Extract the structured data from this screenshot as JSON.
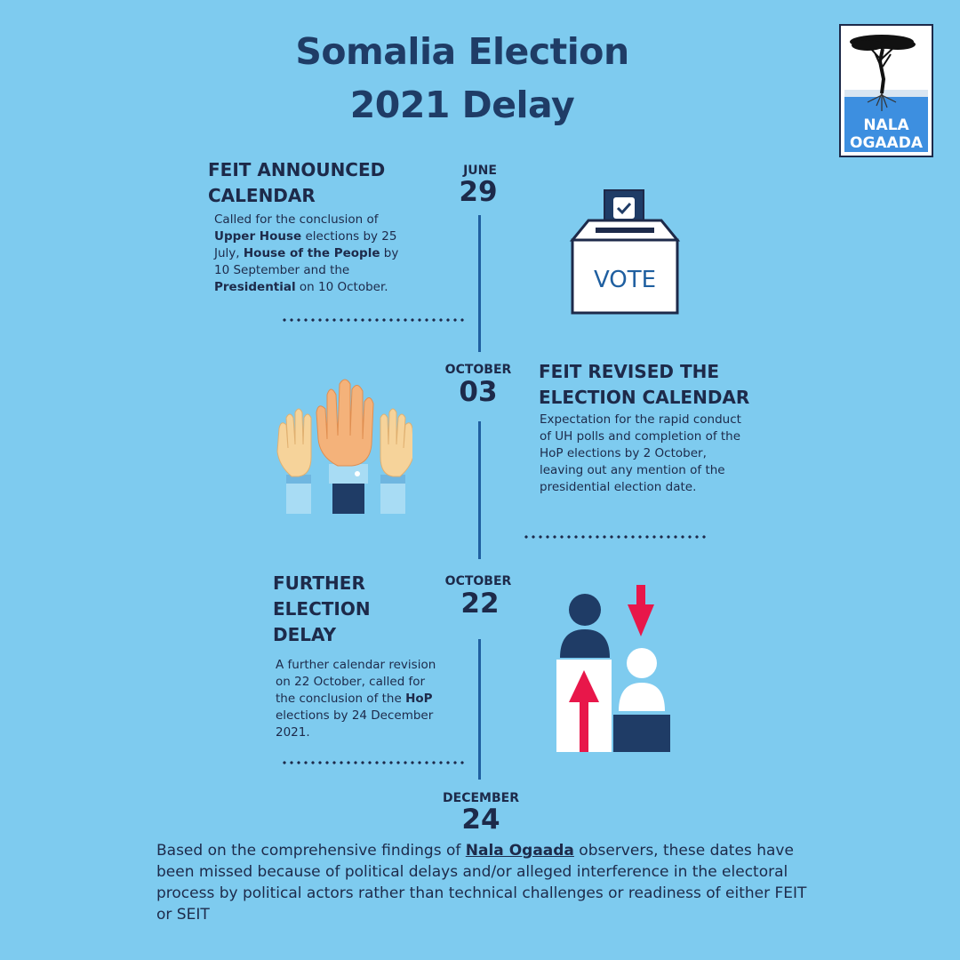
{
  "title": {
    "line1": "Somalia Election",
    "line2": "2021 Delay"
  },
  "logo": {
    "line1": "NALA",
    "line2": "OGAADA"
  },
  "events": [
    {
      "month": "JUNE",
      "day": "29",
      "heading1": "FEIT ANNOUNCED",
      "heading2": "CALENDAR",
      "body": [
        {
          "t": "Called for the conclusion of "
        },
        {
          "t": "Upper House",
          "b": true
        },
        {
          "t": " elections by 25 July, "
        },
        {
          "t": "House of the People",
          "b": true
        },
        {
          "t": " by 10 September and the "
        },
        {
          "t": "Presidential",
          "b": true
        },
        {
          "t": " on 10 October."
        }
      ]
    },
    {
      "month": "OCTOBER",
      "day": "03",
      "heading1": "FEIT REVISED THE",
      "heading2": "ELECTION CALENDAR",
      "body": [
        {
          "t": "Expectation for the rapid conduct of UH polls and completion of the HoP elections by 2 October, leaving out any mention of the presidential election date."
        }
      ]
    },
    {
      "month": "OCTOBER",
      "day": "22",
      "heading1": "FURTHER",
      "heading2": "ELECTION",
      "heading3": "DELAY",
      "body": [
        {
          "t": "A further calendar revision on 22 October, called for the conclusion of the "
        },
        {
          "t": "HoP",
          "b": true
        },
        {
          "t": " elections by 24 December 2021."
        }
      ]
    },
    {
      "month": "DECEMBER",
      "day": "24"
    }
  ],
  "ballot_label": "VOTE",
  "footer": {
    "pre": "Based on the comprehensive findings of ",
    "link": "Nala Ogaada",
    "post": " observers, these dates have been missed because of political delays and/or alleged interference in the electoral process by political actors rather than technical challenges or readiness of either FEIT or SEIT"
  },
  "colors": {
    "background": "#7ecbef",
    "navy": "#1d2a4a",
    "accent_red": "#e8174a",
    "line": "#1f5fa0"
  }
}
